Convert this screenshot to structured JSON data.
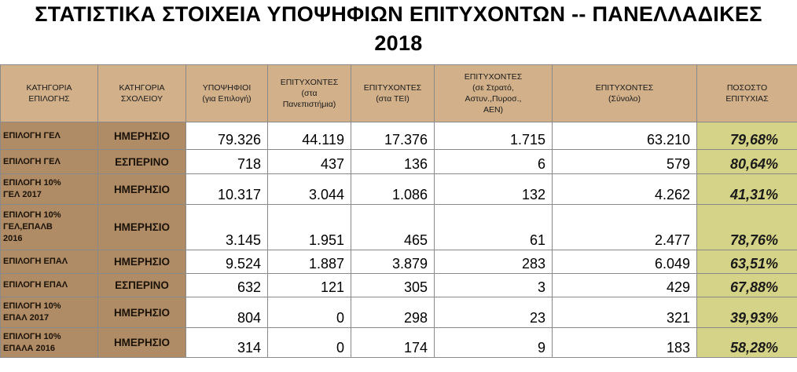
{
  "title": {
    "line1": "ΣΤΑΤΙΣΤΙΚΑ ΣΤΟΙΧΕΙΑ ΥΠΟΨΗΦΙΩΝ ΕΠΙΤΥΧΟΝΤΩΝ -- ΠΑΝΕΛΛΑΔΙΚΕΣ",
    "line2": "2018"
  },
  "colors": {
    "header_bg": "#d1b08a",
    "category_bg": "#b08c66",
    "percent_bg": "#d5d387"
  },
  "columns": [
    [
      "ΚΑΤΗΓΟΡΙΑ",
      "ΕΠΙΛΟΓΗΣ"
    ],
    [
      "ΚΑΤΗΓΟΡΙΑ",
      "ΣΧΟΛΕΙΟΥ"
    ],
    [
      "ΥΠΟΨΗΦΙΟΙ",
      "(για Επιλογή)"
    ],
    [
      "ΕΠΙΤΥΧΟΝΤΕΣ",
      "(στα",
      "Πανεπιστήμια)"
    ],
    [
      "ΕΠΙΤΥΧΟΝΤΕΣ",
      "(στα ΤΕΙ)"
    ],
    [
      "ΕΠΙΤΥΧΟΝΤΕΣ",
      "(σε Στρατό,",
      "Αστυν.,Πυροσ.,",
      "ΑΕΝ)"
    ],
    [
      "ΕΠΙΤΥΧΟΝΤΕΣ",
      "(Σύνολο)"
    ],
    [
      "ΠΟΣΟΣΤΟ",
      "ΕΠΙΤΥΧΙΑΣ"
    ]
  ],
  "rows": [
    {
      "category": [
        "ΕΠΙΛΟΓΗ ΓΕΛ"
      ],
      "school": "ΗΜΕΡΗΣΙΟ",
      "candidates": "79.326",
      "universities": "44.119",
      "tei": "17.376",
      "army": "1.715",
      "total": "63.210",
      "percent": "79,68%"
    },
    {
      "category": [
        "ΕΠΙΛΟΓΗ ΓΕΛ"
      ],
      "school": "ΕΣΠΕΡΙΝΟ",
      "candidates": "718",
      "universities": "437",
      "tei": "136",
      "army": "6",
      "total": "579",
      "percent": "80,64%"
    },
    {
      "category": [
        "ΕΠΙΛΟΓΗ 10%",
        "ΓΕΛ 2017"
      ],
      "school": "ΗΜΕΡΗΣΙΟ",
      "candidates": "10.317",
      "universities": "3.044",
      "tei": "1.086",
      "army": "132",
      "total": "4.262",
      "percent": "41,31%"
    },
    {
      "category": [
        "ΕΠΙΛΟΓΗ 10%",
        "ΓΕΛ,ΕΠΑΛΒ",
        "2016"
      ],
      "school": "ΗΜΕΡΗΣΙΟ",
      "candidates": "3.145",
      "universities": "1.951",
      "tei": "465",
      "army": "61",
      "total": "2.477",
      "percent": "78,76%"
    },
    {
      "category": [
        "ΕΠΙΛΟΓΗ ΕΠΑΛ"
      ],
      "school": "ΗΜΕΡΗΣΙΟ",
      "candidates": "9.524",
      "universities": "1.887",
      "tei": "3.879",
      "army": "283",
      "total": "6.049",
      "percent": "63,51%"
    },
    {
      "category": [
        "ΕΠΙΛΟΓΗ ΕΠΑΛ"
      ],
      "school": "ΕΣΠΕΡΙΝΟ",
      "candidates": "632",
      "universities": "121",
      "tei": "305",
      "army": "3",
      "total": "429",
      "percent": "67,88%"
    },
    {
      "category": [
        "ΕΠΙΛΟΓΗ 10%",
        "ΕΠΑΛ 2017"
      ],
      "school": "ΗΜΕΡΗΣΙΟ",
      "candidates": "804",
      "universities": "0",
      "tei": "298",
      "army": "23",
      "total": "321",
      "percent": "39,93%"
    },
    {
      "category": [
        "ΕΠΙΛΟΓΗ 10%",
        "ΕΠΑΛΑ 2016"
      ],
      "school": "ΗΜΕΡΗΣΙΟ",
      "candidates": "314",
      "universities": "0",
      "tei": "174",
      "army": "9",
      "total": "183",
      "percent": "58,28%"
    }
  ]
}
